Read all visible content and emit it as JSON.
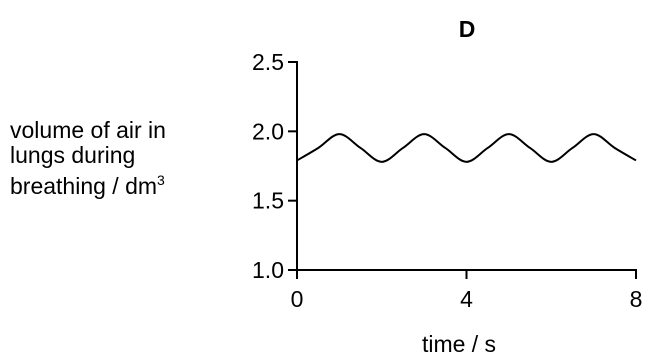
{
  "chart_data": {
    "type": "line",
    "title": "D",
    "xlabel": "time / s",
    "ylabel": {
      "lines": [
        "volume of air in",
        "lungs during",
        "breathing / dm"
      ],
      "unit_exponent": "3"
    },
    "xlim": [
      0,
      8
    ],
    "ylim": [
      1.0,
      2.5
    ],
    "x_ticks": [
      0,
      4,
      8
    ],
    "x_tick_labels": [
      "0",
      "4",
      "8"
    ],
    "y_ticks": [
      1.0,
      1.5,
      2.0,
      2.5
    ],
    "y_tick_labels": [
      "1.0",
      "1.5",
      "2.0",
      "2.5"
    ],
    "grid": false,
    "series": [
      {
        "x": [
          0,
          0.5,
          1,
          1.5,
          2,
          2.5,
          3,
          3.5,
          4,
          4.5,
          5,
          5.5,
          6,
          6.5,
          7,
          7.5,
          8
        ],
        "values": [
          1.79,
          1.88,
          1.98,
          1.88,
          1.78,
          1.88,
          1.98,
          1.88,
          1.78,
          1.88,
          1.98,
          1.88,
          1.78,
          1.88,
          1.98,
          1.88,
          1.79
        ]
      }
    ],
    "line_color": "#000000"
  }
}
